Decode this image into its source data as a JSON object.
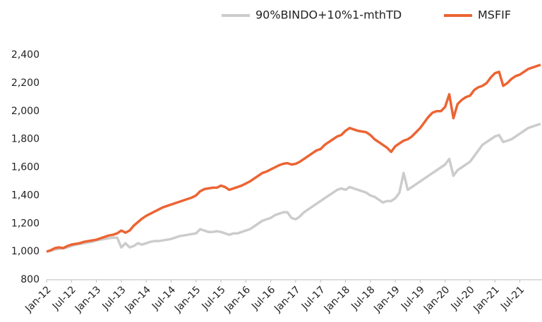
{
  "chart_data": {
    "type": "line",
    "categories": [
      "Jan-12",
      null,
      null,
      null,
      null,
      null,
      "Jul-12",
      null,
      null,
      null,
      null,
      null,
      "Jan-13",
      null,
      null,
      null,
      null,
      null,
      "Jul-13",
      null,
      null,
      null,
      null,
      null,
      "Jan-14",
      null,
      null,
      null,
      null,
      null,
      "Jul-14",
      null,
      null,
      null,
      null,
      null,
      "Jan-15",
      null,
      null,
      null,
      null,
      null,
      "Jul-15",
      null,
      null,
      null,
      null,
      null,
      "Jan-16",
      null,
      null,
      null,
      null,
      null,
      "Jul-16",
      null,
      null,
      null,
      null,
      null,
      "Jan-17",
      null,
      null,
      null,
      null,
      null,
      "Jul-17",
      null,
      null,
      null,
      null,
      null,
      "Jan-18",
      null,
      null,
      null,
      null,
      null,
      "Jul-18",
      null,
      null,
      null,
      null,
      null,
      "Jan-19",
      null,
      null,
      null,
      null,
      null,
      "Jul-19",
      null,
      null,
      null,
      null,
      null,
      "Jan-20",
      null,
      null,
      null,
      null,
      null,
      "Jul-20",
      null,
      null,
      null,
      null,
      null,
      "Jan-21",
      null,
      null,
      null,
      null,
      null,
      "Jul-21",
      null,
      null,
      null,
      null,
      null
    ],
    "series": [
      {
        "name": "90%BINDO+10%1-mthTD",
        "color": "#cccccc",
        "values": [
          1000,
          1005,
          1015,
          1020,
          1025,
          1030,
          1040,
          1050,
          1055,
          1060,
          1065,
          1070,
          1080,
          1085,
          1090,
          1095,
          1100,
          1100,
          1030,
          1060,
          1030,
          1040,
          1060,
          1050,
          1060,
          1070,
          1075,
          1075,
          1080,
          1085,
          1090,
          1100,
          1110,
          1115,
          1120,
          1125,
          1130,
          1160,
          1150,
          1140,
          1140,
          1145,
          1140,
          1130,
          1120,
          1130,
          1130,
          1140,
          1150,
          1160,
          1180,
          1200,
          1220,
          1230,
          1240,
          1260,
          1270,
          1280,
          1280,
          1240,
          1230,
          1250,
          1280,
          1300,
          1320,
          1340,
          1360,
          1380,
          1400,
          1420,
          1440,
          1450,
          1440,
          1460,
          1450,
          1440,
          1430,
          1420,
          1400,
          1390,
          1370,
          1350,
          1360,
          1360,
          1380,
          1420,
          1560,
          1440,
          1460,
          1480,
          1500,
          1520,
          1540,
          1560,
          1580,
          1600,
          1620,
          1660,
          1540,
          1580,
          1600,
          1620,
          1640,
          1680,
          1720,
          1760,
          1780,
          1800,
          1820,
          1830,
          1780,
          1790,
          1800,
          1820,
          1840,
          1860,
          1880,
          1890,
          1900,
          1910
        ]
      },
      {
        "name": "MSFIF",
        "color": "#ec6433",
        "values": [
          1000,
          1010,
          1025,
          1030,
          1025,
          1040,
          1050,
          1055,
          1060,
          1070,
          1075,
          1080,
          1085,
          1095,
          1105,
          1115,
          1120,
          1130,
          1150,
          1135,
          1150,
          1185,
          1210,
          1235,
          1255,
          1270,
          1285,
          1300,
          1315,
          1325,
          1335,
          1345,
          1355,
          1365,
          1375,
          1385,
          1400,
          1430,
          1445,
          1450,
          1455,
          1455,
          1470,
          1460,
          1440,
          1450,
          1460,
          1470,
          1485,
          1500,
          1520,
          1540,
          1560,
          1570,
          1585,
          1600,
          1615,
          1625,
          1630,
          1620,
          1625,
          1640,
          1660,
          1680,
          1700,
          1720,
          1730,
          1760,
          1780,
          1800,
          1820,
          1830,
          1860,
          1880,
          1870,
          1860,
          1855,
          1850,
          1830,
          1800,
          1780,
          1760,
          1740,
          1710,
          1750,
          1770,
          1790,
          1800,
          1820,
          1850,
          1880,
          1920,
          1960,
          1990,
          2000,
          2000,
          2030,
          2120,
          1950,
          2050,
          2080,
          2100,
          2110,
          2150,
          2170,
          2180,
          2200,
          2240,
          2270,
          2280,
          2180,
          2200,
          2230,
          2250,
          2260,
          2280,
          2300,
          2310,
          2320,
          2330
        ]
      }
    ],
    "ylim": [
      800,
      2400
    ],
    "yticks": [
      800,
      {
        "value": 1000,
        "label": "1,000"
      },
      {
        "value": 1200,
        "label": "1,200"
      },
      {
        "value": 1400,
        "label": "1,400"
      },
      {
        "value": 1600,
        "label": "1,600"
      },
      {
        "value": 1800,
        "label": "1,800"
      },
      {
        "value": 2000,
        "label": "2,000"
      },
      {
        "value": 2200,
        "label": "2,200"
      },
      {
        "value": 2400,
        "label": "2,400"
      }
    ],
    "grid": false,
    "legend": "top"
  }
}
